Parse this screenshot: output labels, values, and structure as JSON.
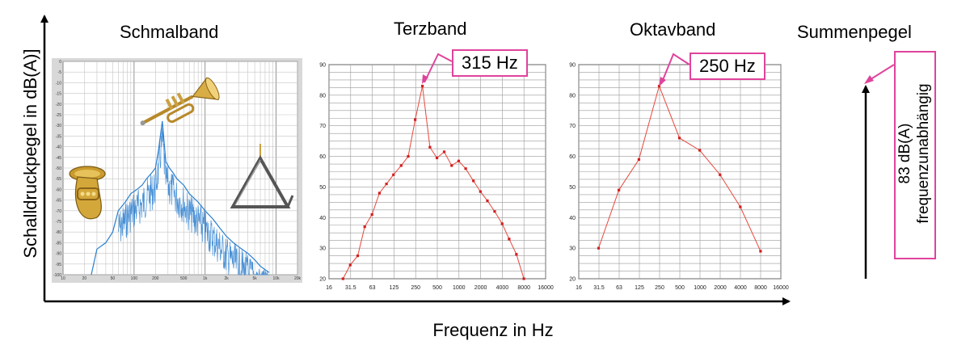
{
  "axes": {
    "ylabel": "Schalldruckpegel in dB(A)]",
    "xlabel": "Frequenz in Hz"
  },
  "headers": {
    "narrow": "Schmalband",
    "third": "Terzband",
    "octave": "Oktavband",
    "sum": "Summenpegel"
  },
  "callouts": {
    "third": "315 Hz",
    "octave": "250 Hz",
    "sum_value": "83 dB(A)",
    "sum_note": "frequenzunabhängig"
  },
  "colors": {
    "accent": "#e0439c",
    "series": "#e8473c",
    "spectrum": "#2a7fd0",
    "panel": "#d8d8d8"
  },
  "chart_data": [
    {
      "type": "line",
      "title": "Schmalband",
      "x_ticks": [
        "10",
        "20",
        "50",
        "100",
        "200",
        "500",
        "1k",
        "2k",
        "5k",
        "10k",
        "20k"
      ],
      "y_ticks": [
        "0",
        "-5",
        "-10",
        "-15",
        "-20",
        "-25",
        "-30",
        "-35",
        "-40",
        "-45",
        "-50",
        "-55",
        "-60",
        "-65",
        "-70",
        "-75",
        "-80",
        "-85",
        "-90",
        "-95",
        "-100"
      ],
      "xscale": "log",
      "xlim": [
        10,
        20000
      ],
      "ylim": [
        -100,
        0
      ],
      "grid": true,
      "series": [
        {
          "x": [
            25,
            30,
            40,
            50,
            60,
            75,
            90,
            110,
            130,
            150,
            180,
            200,
            220,
            250,
            280,
            315,
            350,
            400,
            500,
            600,
            800,
            1000,
            1300,
            1600,
            2000,
            2500,
            3000,
            4000,
            5000,
            6000,
            8000
          ],
          "y": [
            -100,
            -88,
            -85,
            -80,
            -70,
            -66,
            -62,
            -60,
            -58,
            -55,
            -52,
            -50,
            -42,
            -28,
            -47,
            -50,
            -52,
            -55,
            -58,
            -62,
            -66,
            -70,
            -74,
            -78,
            -82,
            -85,
            -87,
            -90,
            -93,
            -96,
            -99
          ]
        }
      ]
    },
    {
      "type": "line",
      "title": "Terzband",
      "x_ticks": [
        "16",
        "31.5",
        "63",
        "125",
        "250",
        "500",
        "1000",
        "2000",
        "4000",
        "8000",
        "16000"
      ],
      "y_ticks": [
        "20",
        "30",
        "40",
        "50",
        "60",
        "70",
        "80",
        "90"
      ],
      "ylim": [
        20,
        90
      ],
      "grid": true,
      "series": [
        {
          "x": [
            "25",
            "31.5",
            "40",
            "50",
            "63",
            "80",
            "100",
            "125",
            "160",
            "200",
            "250",
            "315",
            "400",
            "500",
            "630",
            "800",
            "1000",
            "1250",
            "1600",
            "2000",
            "2500",
            "3150",
            "4000",
            "5000",
            "6300",
            "8000"
          ],
          "y": [
            20,
            24.5,
            27.5,
            37,
            41,
            48,
            51,
            54,
            57,
            60,
            72,
            83,
            63,
            59.5,
            61.5,
            57,
            58.5,
            56,
            52,
            48.5,
            45.5,
            42,
            38,
            33,
            28,
            20
          ]
        }
      ]
    },
    {
      "type": "line",
      "title": "Oktavband",
      "x_ticks": [
        "16",
        "31.5",
        "63",
        "125",
        "250",
        "500",
        "1000",
        "2000",
        "4000",
        "8000",
        "16000"
      ],
      "y_ticks": [
        "20",
        "30",
        "40",
        "50",
        "60",
        "70",
        "80",
        "90"
      ],
      "ylim": [
        20,
        90
      ],
      "grid": true,
      "series": [
        {
          "x": [
            "31.5",
            "63",
            "125",
            "250",
            "500",
            "1000",
            "2000",
            "4000",
            "8000"
          ],
          "y": [
            30,
            49,
            59,
            83,
            66,
            62,
            54,
            43.5,
            29
          ]
        }
      ]
    }
  ]
}
